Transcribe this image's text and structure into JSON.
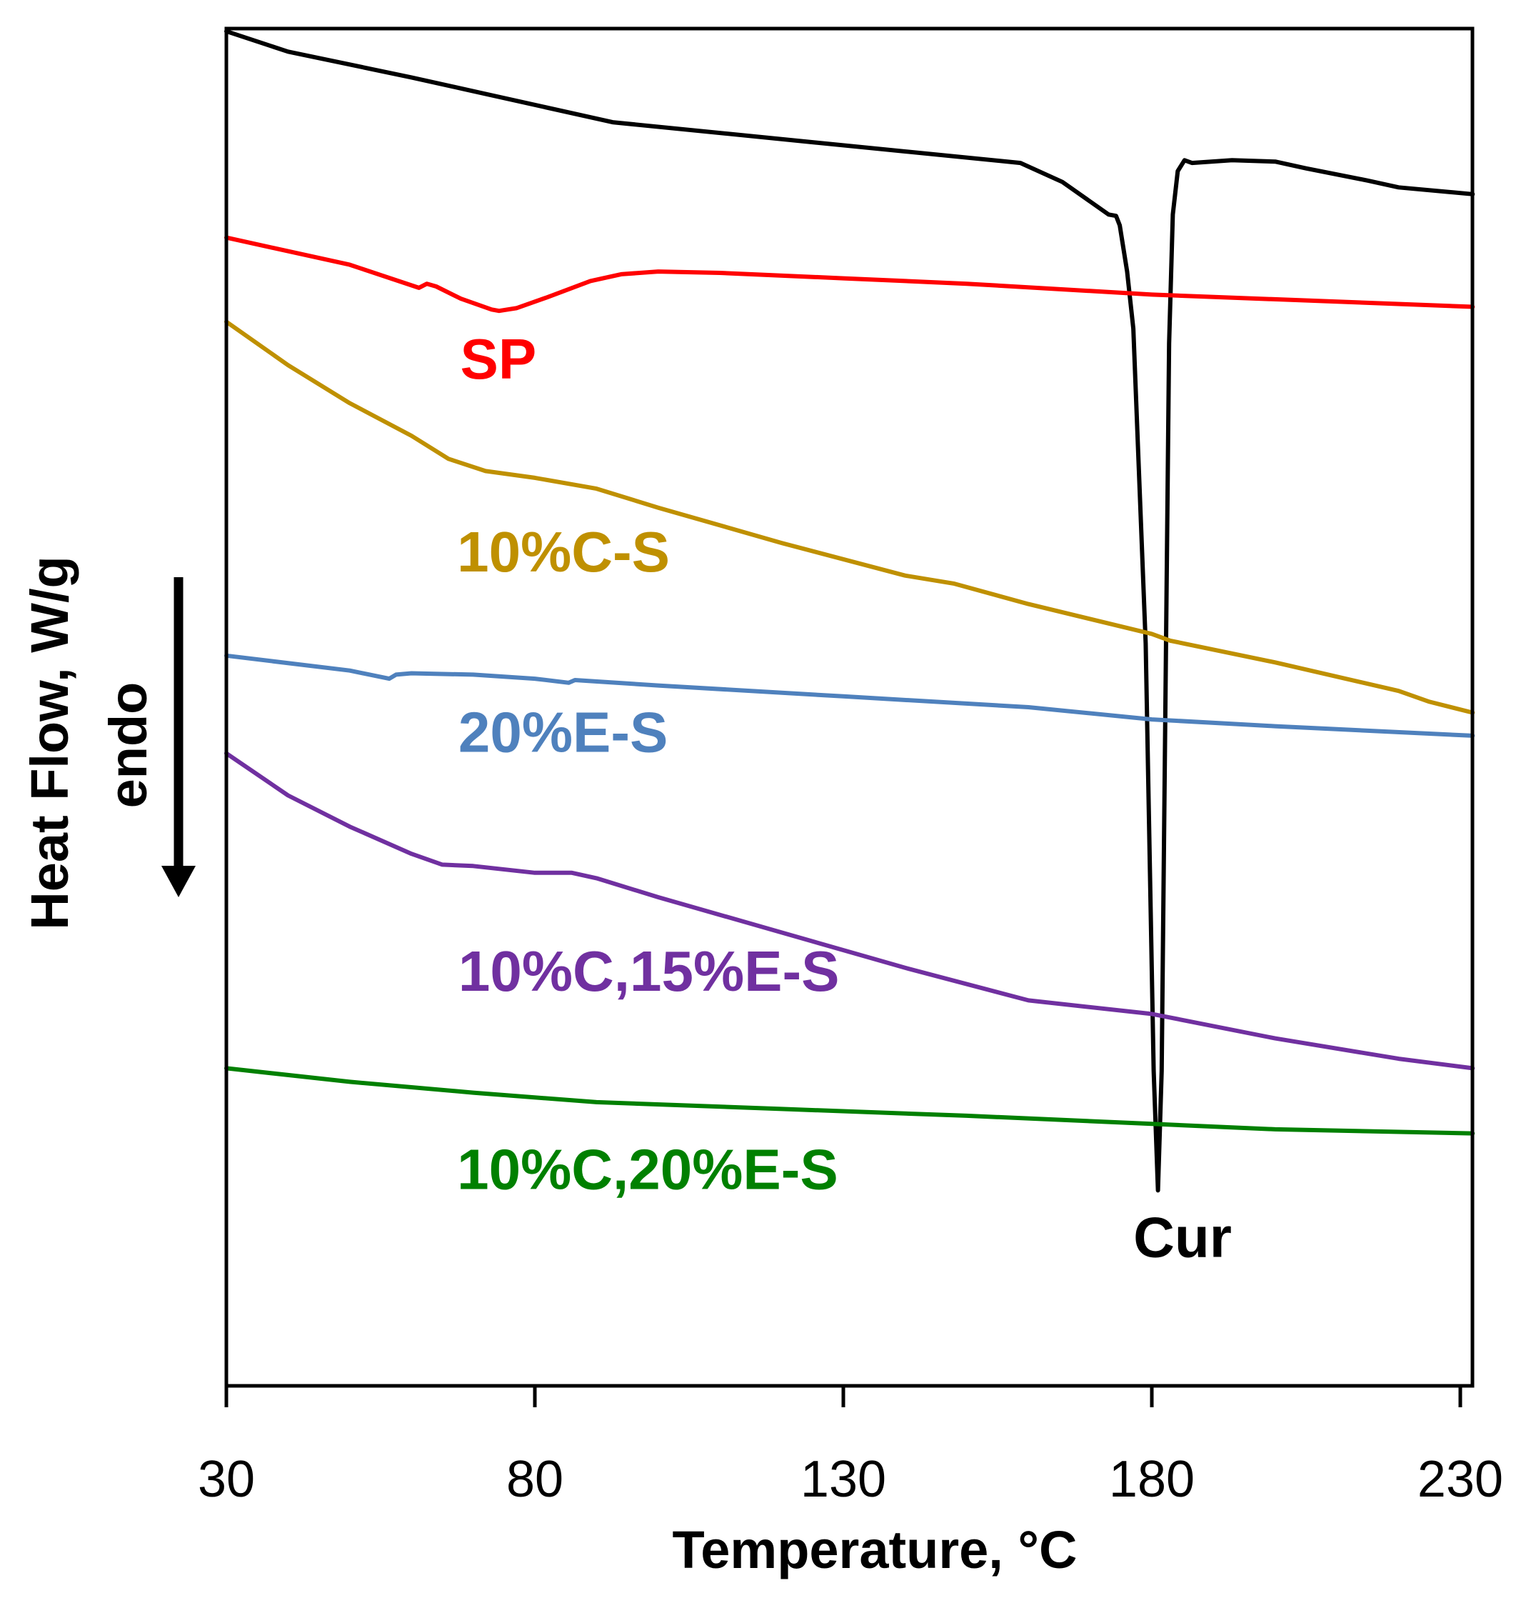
{
  "chart_data": {
    "type": "line",
    "title": "",
    "xlabel": "Temperature, °C",
    "ylabel": "Heat Flow, W/g",
    "ylabel_secondary": "endo",
    "y_direction_note": "endo (downward arrow)",
    "xlim": [
      30,
      232
    ],
    "ylim": [
      0,
      100
    ],
    "y_units": "arbitrary (no y tick labels shown)",
    "xticks": [
      30,
      80,
      130,
      180,
      230
    ],
    "xtick_labels": [
      "30",
      "80",
      "130",
      "180",
      "230"
    ],
    "grid": false,
    "legend": "none (inline labels)",
    "series": [
      {
        "name": "Cur",
        "color": "#000000",
        "x": [
          30,
          40,
          60,
          92.6,
          125.6,
          158.7,
          165.5,
          173,
          174.2,
          174.8,
          176,
          177,
          179,
          180.3,
          181,
          181.6,
          182.3,
          182.8,
          183.4,
          184.2,
          185.3,
          186.5,
          193,
          200,
          205,
          215,
          220,
          232
        ],
        "y": [
          99.8,
          98.3,
          96.4,
          93.1,
          91.6,
          90.1,
          88.7,
          86.3,
          86.2,
          85.5,
          82.1,
          77.9,
          54.7,
          23.2,
          14.4,
          23.2,
          54.7,
          76.8,
          86.3,
          89.5,
          90.3,
          90.1,
          90.3,
          90.2,
          89.7,
          88.8,
          88.3,
          87.8
        ],
        "label": "Cur",
        "label_at": [
          177,
          9.5
        ]
      },
      {
        "name": "SP",
        "color": "#FF0000",
        "x": [
          30,
          50,
          61.2,
          62.5,
          64,
          68,
          73,
          74.2,
          77,
          82,
          89,
          94,
          100,
          110,
          130,
          150,
          180,
          232
        ],
        "y": [
          84.6,
          82.6,
          80.9,
          81.2,
          81.0,
          80.1,
          79.3,
          79.2,
          79.4,
          80.2,
          81.4,
          81.9,
          82.1,
          82.0,
          81.6,
          81.2,
          80.4,
          79.5
        ],
        "label": "SP",
        "label_at": [
          67.9,
          74.2
        ]
      },
      {
        "name": "10%C-S",
        "color": "#BF9000",
        "x": [
          30,
          40,
          50,
          60,
          66,
          72,
          80,
          90,
          100,
          120,
          140,
          148,
          160,
          180,
          183,
          200,
          220,
          225,
          232
        ],
        "y": [
          78.4,
          75.2,
          72.4,
          70.0,
          68.3,
          67.4,
          66.9,
          66.1,
          64.7,
          62.1,
          59.7,
          59.1,
          57.6,
          55.4,
          54.9,
          53.3,
          51.2,
          50.4,
          49.6
        ],
        "label": "10%C-S",
        "label_at": [
          67.4,
          60.0
        ]
      },
      {
        "name": "20%E-S",
        "color": "#4F81BD",
        "x": [
          30,
          50,
          56.4,
          57.5,
          60,
          70,
          80,
          85.5,
          86.5,
          100,
          130,
          160,
          180,
          200,
          232
        ],
        "y": [
          53.8,
          52.7,
          52.1,
          52.4,
          52.5,
          52.4,
          52.1,
          51.8,
          52.0,
          51.6,
          50.8,
          50.0,
          49.1,
          48.6,
          47.9
        ],
        "label": "20%E-S",
        "label_at": [
          67.6,
          46.7
        ]
      },
      {
        "name": "10%C,15%E-S",
        "color": "#7030A0",
        "x": [
          30,
          40,
          50,
          60,
          65,
          70,
          80,
          86,
          90,
          100,
          120,
          140,
          160,
          180,
          200,
          220,
          232
        ],
        "y": [
          46.6,
          43.5,
          41.2,
          39.2,
          38.4,
          38.3,
          37.8,
          37.8,
          37.4,
          36.0,
          33.4,
          30.8,
          28.4,
          27.4,
          25.6,
          24.1,
          23.4
        ],
        "label": "10%C,15%E-S",
        "label_at": [
          67.6,
          29.1
        ]
      },
      {
        "name": "10%C,20%E-S",
        "color": "#008000",
        "x": [
          30,
          50,
          70,
          90,
          120,
          150,
          180,
          200,
          232
        ],
        "y": [
          23.4,
          22.4,
          21.6,
          20.9,
          20.4,
          19.9,
          19.3,
          18.9,
          18.6
        ],
        "label": "10%C,20%E-S",
        "label_at": [
          67.4,
          14.5
        ]
      }
    ]
  }
}
